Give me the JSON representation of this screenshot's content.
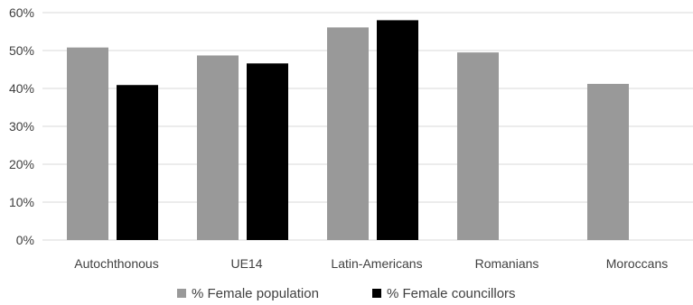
{
  "chart_data": {
    "type": "bar",
    "title": "",
    "xlabel": "",
    "ylabel": "",
    "categories": [
      "Autochthonous",
      "UE14",
      "Latin-Americans",
      "Romanians",
      "Moroccans"
    ],
    "series": [
      {
        "name": "% Female population",
        "color": "#999999",
        "values": [
          50.8,
          48.7,
          56.1,
          49.5,
          41.2
        ]
      },
      {
        "name": "% Female councillors",
        "color": "#000000",
        "values": [
          40.9,
          46.6,
          58.0,
          null,
          null
        ]
      }
    ],
    "ylim": [
      0,
      60
    ],
    "yticks": [
      "0%",
      "10%",
      "20%",
      "30%",
      "40%",
      "50%",
      "60%"
    ],
    "ytick_values": [
      0,
      10,
      20,
      30,
      40,
      50,
      60
    ],
    "grid": true,
    "grid_color": "#d9d9d9",
    "legend_position": "bottom"
  }
}
